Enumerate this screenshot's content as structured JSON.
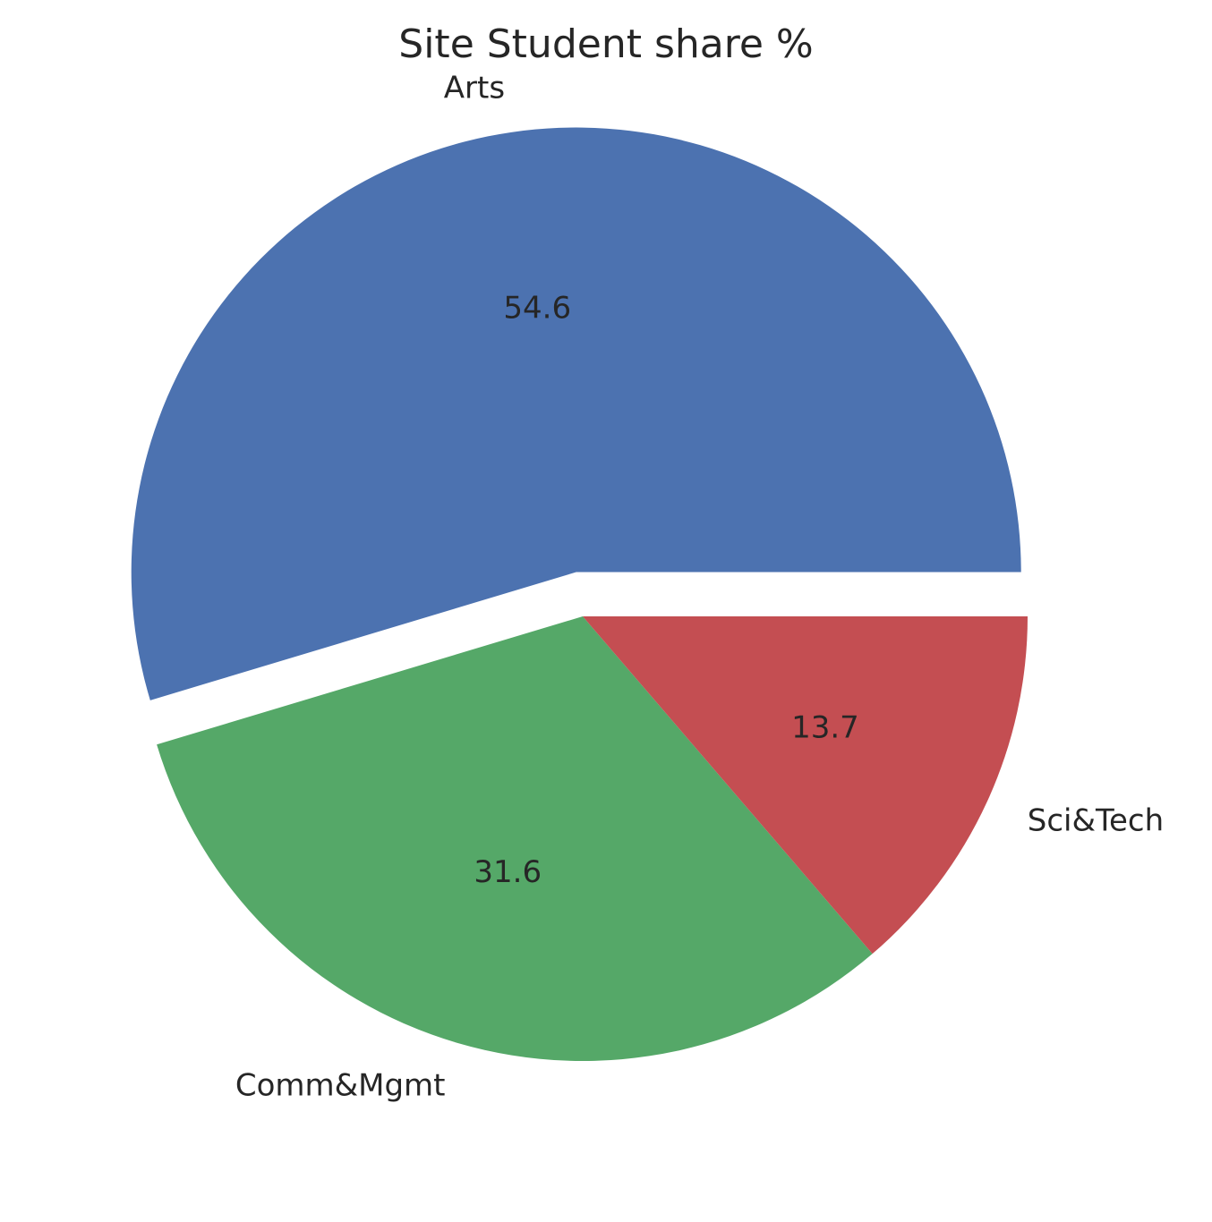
{
  "chart_data": {
    "type": "pie",
    "title": "Site Student share %",
    "slices": [
      {
        "label": "Arts",
        "value": 54.6,
        "value_label": "54.6",
        "color": "#4c72b0",
        "exploded": true
      },
      {
        "label": "Comm&Mgmt",
        "value": 31.6,
        "value_label": "31.6",
        "color": "#55a868",
        "exploded": false
      },
      {
        "label": "Sci&Tech",
        "value": 13.7,
        "value_label": "13.7",
        "color": "#c44e52",
        "exploded": false
      }
    ],
    "start_angle_deg": 0,
    "direction": "counterclockwise",
    "background": "#ffffff"
  }
}
